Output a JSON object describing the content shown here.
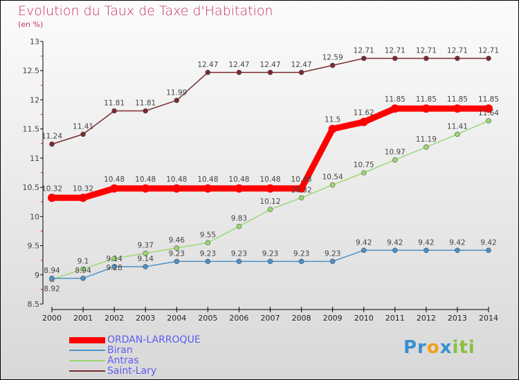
{
  "title": "Evolution du Taux de Taxe d'Habitation",
  "unit": "(en %)",
  "logo": "Proxiti",
  "chart_data": {
    "type": "line",
    "title": "Evolution du Taux de Taxe d'Habitation",
    "ylabel": "(en %)",
    "ylim": [
      8.5,
      13
    ],
    "yticks": [
      "8.5",
      "9",
      "9.5",
      "10",
      "10.5",
      "11",
      "11.5",
      "12",
      "12.5",
      "13"
    ],
    "x": [
      "2000",
      "2001",
      "2002",
      "2003",
      "2004",
      "2005",
      "2006",
      "2007",
      "2008",
      "2009",
      "2010",
      "2011",
      "2012",
      "2013",
      "2014"
    ],
    "legend_position": "bottom-left",
    "series": [
      {
        "name": "ORDAN-LARROQUE",
        "color": "#ff0000",
        "values": [
          10.32,
          10.32,
          10.48,
          10.48,
          10.48,
          10.48,
          10.48,
          10.48,
          10.48,
          11.5,
          11.62,
          11.85,
          11.85,
          11.85,
          11.85
        ]
      },
      {
        "name": "Biran",
        "color": "#4a90c8",
        "values": [
          8.94,
          8.94,
          9.14,
          9.14,
          9.23,
          9.23,
          9.23,
          9.23,
          9.23,
          9.23,
          9.42,
          9.42,
          9.42,
          9.42,
          9.42
        ]
      },
      {
        "name": "Antras",
        "color": "#9ad870",
        "values": [
          8.92,
          9.1,
          9.28,
          9.37,
          9.46,
          9.55,
          9.83,
          10.12,
          10.32,
          10.54,
          10.75,
          10.97,
          11.19,
          11.41,
          11.64
        ]
      },
      {
        "name": "Saint-Lary",
        "color": "#7a2a30",
        "values": [
          11.24,
          11.41,
          11.81,
          11.81,
          11.99,
          12.47,
          12.47,
          12.47,
          12.47,
          12.59,
          12.71,
          12.71,
          12.71,
          12.71,
          12.71
        ]
      }
    ]
  }
}
